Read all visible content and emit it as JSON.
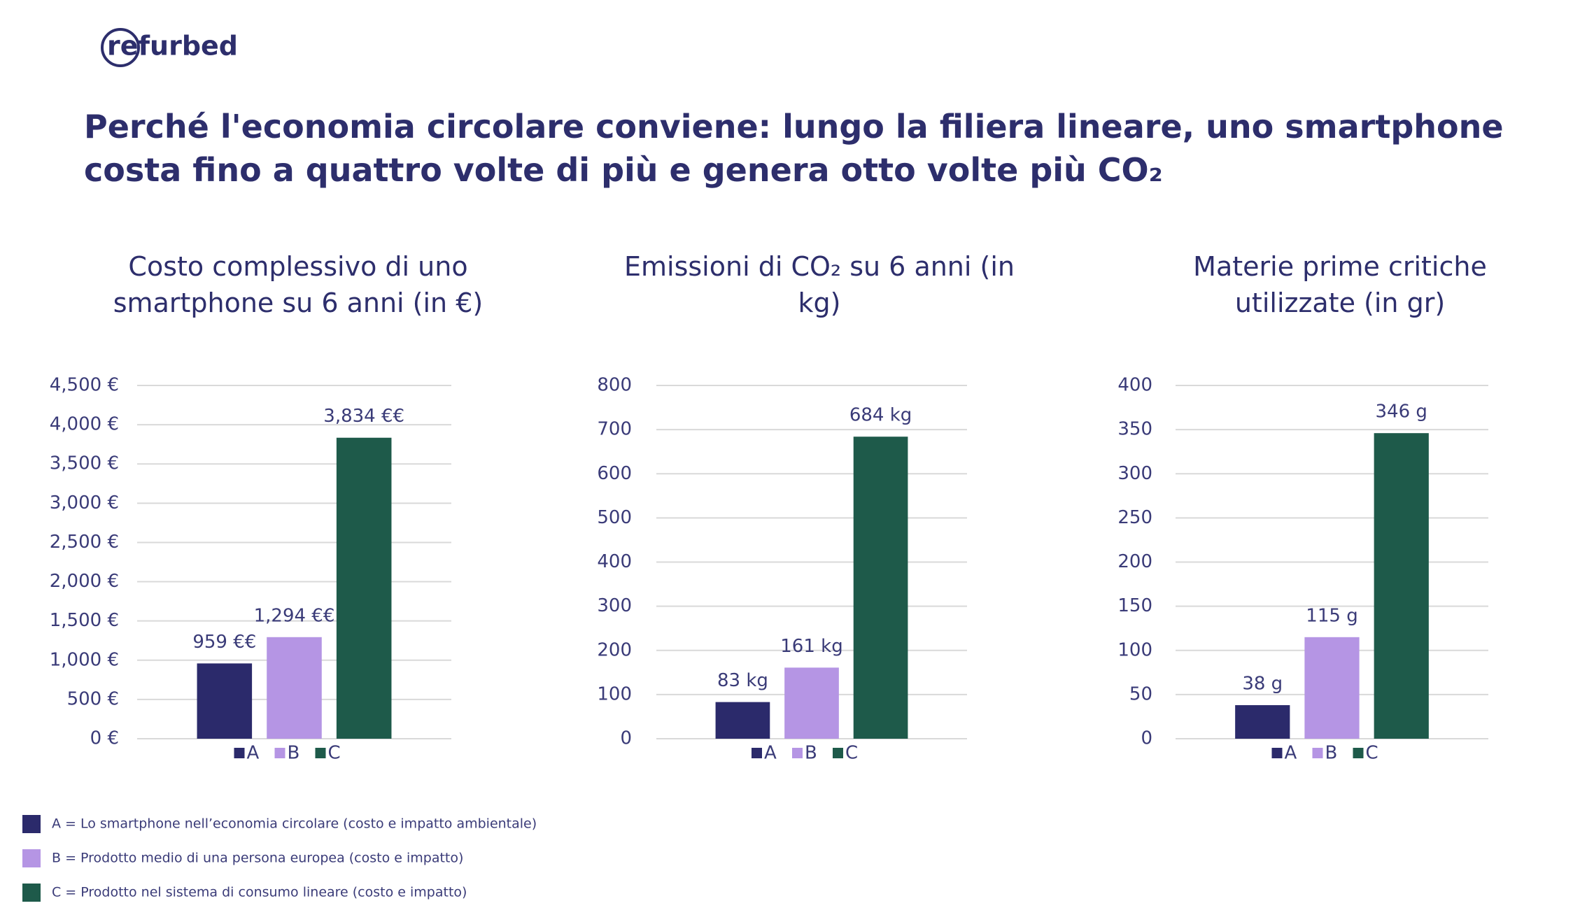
{
  "header": {
    "logo": "refurbed",
    "title": "Perché l'economia circolare conviene: lungo la filiera lineare, uno smartphone costa fino a quattro volte di più e genera otto volte più CO₂"
  },
  "chart_data": [
    {
      "type": "bar",
      "title": "Costo complessivo di uno smartphone su 6 anni (in €)",
      "categories": [
        "A",
        "B",
        "C"
      ],
      "values": [
        959,
        1294,
        3834
      ],
      "value_labels": [
        "959 €€",
        "1,294 €€",
        "3,834 €€"
      ],
      "colors": [
        "#2b2a6b",
        "#b595e4",
        "#1e5a4a"
      ],
      "ylim": [
        0,
        4500
      ],
      "yticks": [
        {
          "value": 0,
          "label": "0 €"
        },
        {
          "value": 500,
          "label": "500 €"
        },
        {
          "value": 1000,
          "label": "1,000 €"
        },
        {
          "value": 1500,
          "label": "1,500 €"
        },
        {
          "value": 2000,
          "label": "2,000 €"
        },
        {
          "value": 2500,
          "label": "2,500 €"
        },
        {
          "value": 3000,
          "label": "3,000 €"
        },
        {
          "value": 3500,
          "label": "3,500 €"
        },
        {
          "value": 4000,
          "label": "4,000 €"
        },
        {
          "value": 4500,
          "label": "4,500 €"
        }
      ],
      "grid": true
    },
    {
      "type": "bar",
      "title": "Emissioni di CO₂ su 6 anni (in kg)",
      "categories": [
        "A",
        "B",
        "C"
      ],
      "values": [
        83,
        161,
        684
      ],
      "value_labels": [
        "83 kg",
        "161 kg",
        "684 kg"
      ],
      "colors": [
        "#2b2a6b",
        "#b595e4",
        "#1e5a4a"
      ],
      "ylim": [
        0,
        800
      ],
      "yticks": [
        0,
        100,
        200,
        300,
        400,
        500,
        600,
        700,
        800
      ],
      "grid": true
    },
    {
      "type": "bar",
      "title": "Materie prime critiche utilizzate (in gr)",
      "categories": [
        "A",
        "B",
        "C"
      ],
      "values": [
        38,
        115,
        346
      ],
      "value_labels": [
        "38 g",
        "115 g",
        "346 g"
      ],
      "colors": [
        "#2b2a6b",
        "#b595e4",
        "#1e5a4a"
      ],
      "ylim": [
        0,
        400
      ],
      "yticks": [
        0,
        50,
        100,
        150,
        200,
        250,
        300,
        350,
        400
      ],
      "grid": true
    }
  ],
  "legend_notes": [
    {
      "color": "#2b2a6b",
      "text": "A = Lo smartphone nell’economia circolare (costo e impatto ambientale)"
    },
    {
      "color": "#b595e4",
      "text": "B = Prodotto medio di una persona europea (costo e impatto)"
    },
    {
      "color": "#1e5a4a",
      "text": "C = Prodotto nel sistema di consumo lineare (costo e impatto)"
    }
  ]
}
